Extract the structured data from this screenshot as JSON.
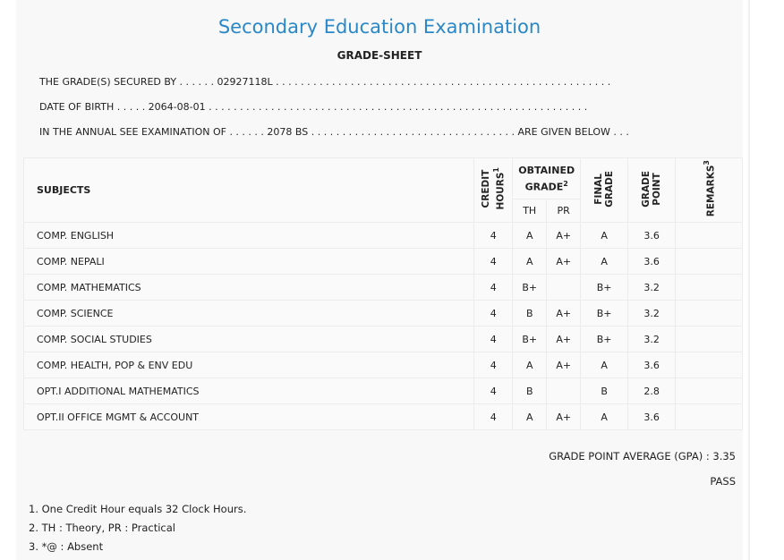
{
  "header": {
    "title": "Secondary Education Examination",
    "subtitle": "GRADE-SHEET"
  },
  "info": {
    "secured_by": "THE GRADE(S) SECURED BY . . . . . . 02927118L . . . . . . . . . . . . . . . . . . . . . . . . . . . . . . . . . . . . . . . . . . . . . . . . . . . . . .",
    "dob": "DATE OF BIRTH . . . . . 2064-08-01 . . . . . . . . . . . . . . . . . . . . . . . . . . . . . . . . . . . . . . . . . . . . . . . . . . . . . . . . . . . . .",
    "exam": "IN THE ANNUAL SEE EXAMINATION OF . . . . . . 2078 BS . . . . . . . . . . . . . . . . . . . . . . . . . . . . . . . . . ARE GIVEN BELOW . . ."
  },
  "table": {
    "headers": {
      "subjects": "SUBJECTS",
      "credit_line1": "CREDIT",
      "credit_line2": "HOURS",
      "credit_sup": "1",
      "obtained_line1": "OBTAINED",
      "obtained_line2": "GRADE",
      "obtained_sup": "2",
      "th": "TH",
      "pr": "PR",
      "final_line1": "FINAL",
      "final_line2": "GRADE",
      "gp_line1": "GRADE",
      "gp_line2": "POINT",
      "remarks": "REMARKS",
      "remarks_sup": "3"
    },
    "rows": [
      {
        "subject": "COMP. ENGLISH",
        "credit": "4",
        "th": "A",
        "pr": "A+",
        "final": "A",
        "gp": "3.6",
        "remarks": ""
      },
      {
        "subject": "COMP. NEPALI",
        "credit": "4",
        "th": "A",
        "pr": "A+",
        "final": "A",
        "gp": "3.6",
        "remarks": ""
      },
      {
        "subject": "COMP. MATHEMATICS",
        "credit": "4",
        "th": "B+",
        "pr": "",
        "final": "B+",
        "gp": "3.2",
        "remarks": ""
      },
      {
        "subject": "COMP. SCIENCE",
        "credit": "4",
        "th": "B",
        "pr": "A+",
        "final": "B+",
        "gp": "3.2",
        "remarks": ""
      },
      {
        "subject": "COMP. SOCIAL STUDIES",
        "credit": "4",
        "th": "B+",
        "pr": "A+",
        "final": "B+",
        "gp": "3.2",
        "remarks": ""
      },
      {
        "subject": "COMP. HEALTH, POP & ENV EDU",
        "credit": "4",
        "th": "A",
        "pr": "A+",
        "final": "A",
        "gp": "3.6",
        "remarks": ""
      },
      {
        "subject": "OPT.I ADDITIONAL MATHEMATICS",
        "credit": "4",
        "th": "B",
        "pr": "",
        "final": "B",
        "gp": "2.8",
        "remarks": ""
      },
      {
        "subject": "OPT.II OFFICE MGMT & ACCOUNT",
        "credit": "4",
        "th": "A",
        "pr": "A+",
        "final": "A",
        "gp": "3.6",
        "remarks": ""
      }
    ]
  },
  "summary": {
    "gpa": "GRADE POINT AVERAGE (GPA) : 3.35",
    "result": "PASS"
  },
  "notes": [
    "1. One Credit Hour equals 32 Clock Hours.",
    "2. TH : Theory, PR : Practical",
    "3. *@ : Absent"
  ],
  "colors": {
    "title": "#2a88c8",
    "background": "#f8f8f8"
  }
}
